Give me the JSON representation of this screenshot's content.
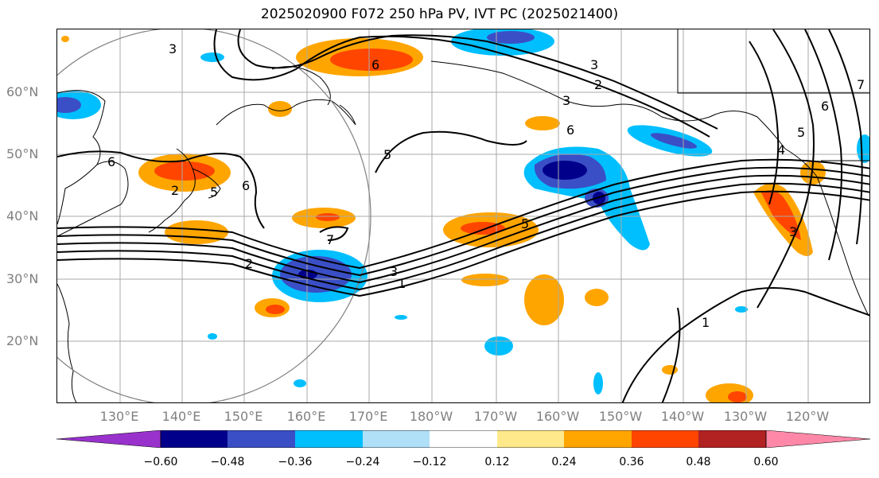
{
  "title": "2025020900 F072 250 hPa PV, IVT PC (2025021400)",
  "lat_labels": [
    "60°N",
    "50°N",
    "40°N",
    "30°N",
    "20°N"
  ],
  "lon_labels": [
    "130°E",
    "140°E",
    "150°E",
    "160°E",
    "170°E",
    "180°W",
    "170°W",
    "160°W",
    "150°W",
    "140°W",
    "130°W",
    "120°W"
  ],
  "contour_labels": [
    "3",
    "6",
    "3",
    "2",
    "3",
    "6",
    "5",
    "6",
    "2",
    "5",
    "6",
    "7",
    "5",
    "3",
    "1",
    "2",
    "1",
    "3",
    "4",
    "5",
    "6",
    "7"
  ],
  "colorbar": {
    "colors": [
      "#9932cc",
      "#00008b",
      "#3a4fc6",
      "#00bfff",
      "#b0e0f8",
      "#ffffff",
      "#ffffff",
      "#ffe98a",
      "#ffa500",
      "#ff4500",
      "#b22222",
      "#ff88a8"
    ],
    "tick_labels": [
      "−0.60",
      "−0.48",
      "−0.36",
      "−0.24",
      "−0.12",
      "0.12",
      "0.24",
      "0.36",
      "0.48",
      "0.60"
    ]
  }
}
